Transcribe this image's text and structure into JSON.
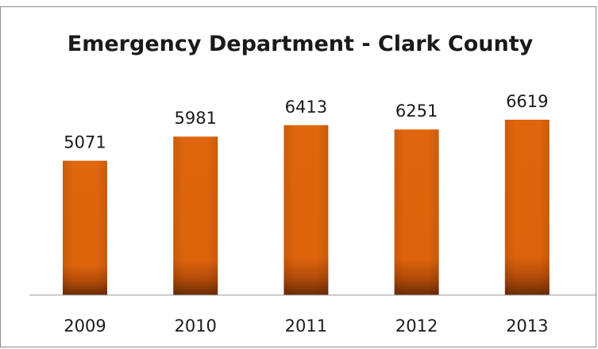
{
  "chart_data": {
    "type": "bar",
    "title": "Emergency Department - Clark County",
    "categories": [
      "2009",
      "2010",
      "2011",
      "2012",
      "2013"
    ],
    "values": [
      5071,
      5981,
      6413,
      6251,
      6619
    ],
    "xlabel": "",
    "ylabel": "",
    "ylim": [
      0,
      7500
    ],
    "grid": false,
    "legend": "none",
    "bar_color": "#e0660d",
    "bar_shadow_color": "#6b2c05"
  }
}
